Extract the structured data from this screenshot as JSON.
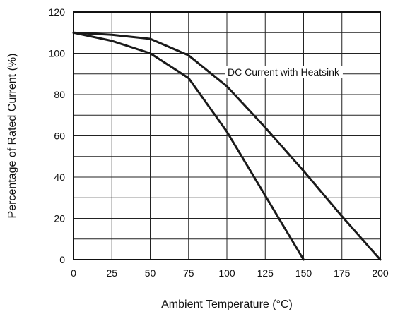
{
  "chart_data": {
    "type": "line",
    "xlabel": "Ambient Temperature (°C)",
    "ylabel": "Percentage of Rated Current (%)",
    "xlim": [
      0,
      200
    ],
    "ylim": [
      0,
      120
    ],
    "x_ticks": [
      0,
      25,
      50,
      75,
      100,
      125,
      150,
      175,
      200
    ],
    "y_ticks": [
      0,
      20,
      40,
      60,
      80,
      100,
      120
    ],
    "x_tick_labels": [
      "0",
      "25",
      "50",
      "75",
      "100",
      "125",
      "150",
      "175",
      "200"
    ],
    "y_tick_labels": [
      "0",
      "20",
      "40",
      "60",
      "80",
      "100",
      "120"
    ],
    "grid": true,
    "series": [
      {
        "label": "DC Current with Heatsink",
        "points": [
          [
            0,
            110
          ],
          [
            25,
            109
          ],
          [
            50,
            107
          ],
          [
            75,
            99
          ],
          [
            100,
            84
          ],
          [
            125,
            64
          ],
          [
            150,
            43
          ],
          [
            175,
            21
          ],
          [
            200,
            0
          ]
        ]
      },
      {
        "points": [
          [
            0,
            110
          ],
          [
            25,
            106
          ],
          [
            50,
            100
          ],
          [
            75,
            88
          ],
          [
            100,
            62
          ],
          [
            125,
            31
          ],
          [
            150,
            0
          ]
        ]
      }
    ],
    "annotation": "DC Current with Heatsink"
  }
}
